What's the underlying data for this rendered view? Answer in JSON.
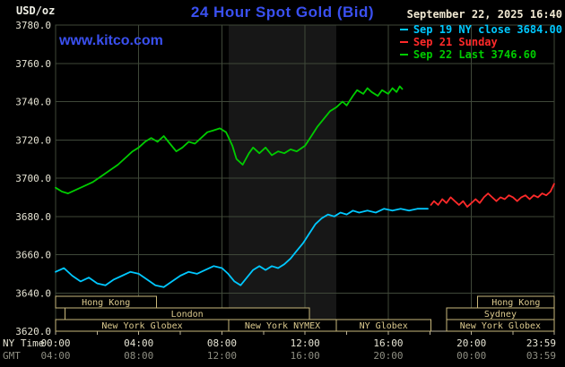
{
  "header": {
    "unit_label": "USD/oz",
    "title": "24 Hour Spot Gold (Bid)",
    "datetime": "September 22, 2025 16:40",
    "watermark": "www.kitco.com"
  },
  "axes": {
    "x_primary_name": "NY Time",
    "x_secondary_name": "GMT",
    "x_primary_labels": [
      "00:00",
      "04:00",
      "08:00",
      "12:00",
      "16:00",
      "20:00",
      "23:59"
    ],
    "x_secondary_labels": [
      "04:00",
      "08:00",
      "12:00",
      "16:00",
      "20:00",
      "00:00",
      "03:59"
    ],
    "x_label_hours": [
      0,
      4,
      8,
      12,
      16,
      20,
      23.983
    ],
    "y_tick_labels": [
      "3780.0",
      "3760.0",
      "3740.0",
      "3720.0",
      "3700.0",
      "3680.0",
      "3660.0",
      "3640.0",
      "3620.0"
    ]
  },
  "colors": {
    "background": "#000000",
    "plot_band": "#171717",
    "grid": "#3f4839",
    "axis_text": "#e6e4d4",
    "gmt_text": "#8e8e82",
    "axis_line": "#b9b199",
    "session_border": "#c9b87b",
    "session_text": "#dcca8e",
    "title": "#3a50f0",
    "datetime": "#f0e8d2",
    "unit": "#f0f0e6"
  },
  "chart_data": {
    "type": "line",
    "title": "24 Hour Spot Gold (Bid)",
    "ylabel": "USD/oz",
    "xlabel": "NY Time / GMT",
    "grid": true,
    "legend_position": "top-right",
    "xlim_hours": [
      0,
      23.983
    ],
    "ylim": [
      3620,
      3780
    ],
    "ytick_step": 20,
    "highlight_band_hours": [
      8.33,
      13.5
    ],
    "series": [
      {
        "name": "Sep 19 NY close 3684.00",
        "color": "#00c8ff",
        "points": [
          [
            0,
            3651
          ],
          [
            0.4,
            3653
          ],
          [
            0.8,
            3649
          ],
          [
            1.2,
            3646
          ],
          [
            1.6,
            3648
          ],
          [
            2,
            3645
          ],
          [
            2.4,
            3644
          ],
          [
            2.8,
            3647
          ],
          [
            3.2,
            3649
          ],
          [
            3.6,
            3651
          ],
          [
            4,
            3650
          ],
          [
            4.4,
            3647
          ],
          [
            4.8,
            3644
          ],
          [
            5.2,
            3643
          ],
          [
            5.6,
            3646
          ],
          [
            6,
            3649
          ],
          [
            6.4,
            3651
          ],
          [
            6.8,
            3650
          ],
          [
            7.2,
            3652
          ],
          [
            7.6,
            3654
          ],
          [
            8,
            3653
          ],
          [
            8.3,
            3650
          ],
          [
            8.6,
            3646
          ],
          [
            8.9,
            3644
          ],
          [
            9.2,
            3648
          ],
          [
            9.5,
            3652
          ],
          [
            9.8,
            3654
          ],
          [
            10.1,
            3652
          ],
          [
            10.4,
            3654
          ],
          [
            10.7,
            3653
          ],
          [
            11,
            3655
          ],
          [
            11.3,
            3658
          ],
          [
            11.6,
            3662
          ],
          [
            11.9,
            3666
          ],
          [
            12.2,
            3671
          ],
          [
            12.5,
            3676
          ],
          [
            12.8,
            3679
          ],
          [
            13.1,
            3681
          ],
          [
            13.4,
            3680
          ],
          [
            13.7,
            3682
          ],
          [
            14,
            3681
          ],
          [
            14.3,
            3683
          ],
          [
            14.6,
            3682
          ],
          [
            15,
            3683
          ],
          [
            15.4,
            3682
          ],
          [
            15.8,
            3684
          ],
          [
            16.2,
            3683
          ],
          [
            16.6,
            3684
          ],
          [
            17,
            3683
          ],
          [
            17.4,
            3684
          ],
          [
            17.9,
            3684
          ]
        ]
      },
      {
        "name": "Sep 21 Sunday",
        "color": "#ff2a2a",
        "points": [
          [
            18.05,
            3686
          ],
          [
            18.2,
            3688
          ],
          [
            18.4,
            3686
          ],
          [
            18.6,
            3689
          ],
          [
            18.8,
            3687
          ],
          [
            19,
            3690
          ],
          [
            19.2,
            3688
          ],
          [
            19.4,
            3686
          ],
          [
            19.6,
            3688
          ],
          [
            19.8,
            3685
          ],
          [
            20,
            3687
          ],
          [
            20.2,
            3689
          ],
          [
            20.4,
            3687
          ],
          [
            20.6,
            3690
          ],
          [
            20.8,
            3692
          ],
          [
            21,
            3690
          ],
          [
            21.2,
            3688
          ],
          [
            21.4,
            3690
          ],
          [
            21.6,
            3689
          ],
          [
            21.8,
            3691
          ],
          [
            22,
            3690
          ],
          [
            22.2,
            3688
          ],
          [
            22.4,
            3690
          ],
          [
            22.6,
            3691
          ],
          [
            22.8,
            3689
          ],
          [
            23,
            3691
          ],
          [
            23.2,
            3690
          ],
          [
            23.4,
            3692
          ],
          [
            23.6,
            3691
          ],
          [
            23.8,
            3693
          ],
          [
            23.98,
            3697
          ]
        ]
      },
      {
        "name": "Sep 22 Last 3746.60",
        "color": "#00cc00",
        "points": [
          [
            0,
            3695
          ],
          [
            0.3,
            3693
          ],
          [
            0.6,
            3692
          ],
          [
            1,
            3694
          ],
          [
            1.4,
            3696
          ],
          [
            1.8,
            3698
          ],
          [
            2.2,
            3701
          ],
          [
            2.6,
            3704
          ],
          [
            3,
            3707
          ],
          [
            3.4,
            3711
          ],
          [
            3.7,
            3714
          ],
          [
            4,
            3716
          ],
          [
            4.3,
            3719
          ],
          [
            4.6,
            3721
          ],
          [
            4.9,
            3719
          ],
          [
            5.2,
            3722
          ],
          [
            5.5,
            3718
          ],
          [
            5.8,
            3714
          ],
          [
            6.1,
            3716
          ],
          [
            6.4,
            3719
          ],
          [
            6.7,
            3718
          ],
          [
            7,
            3721
          ],
          [
            7.3,
            3724
          ],
          [
            7.6,
            3725
          ],
          [
            7.9,
            3726
          ],
          [
            8.2,
            3724
          ],
          [
            8.5,
            3717
          ],
          [
            8.7,
            3710
          ],
          [
            9,
            3707
          ],
          [
            9.3,
            3713
          ],
          [
            9.5,
            3716
          ],
          [
            9.8,
            3713
          ],
          [
            10.1,
            3716
          ],
          [
            10.4,
            3712
          ],
          [
            10.7,
            3714
          ],
          [
            11,
            3713
          ],
          [
            11.3,
            3715
          ],
          [
            11.6,
            3714
          ],
          [
            12,
            3717
          ],
          [
            12.3,
            3722
          ],
          [
            12.6,
            3727
          ],
          [
            12.9,
            3731
          ],
          [
            13.2,
            3735
          ],
          [
            13.5,
            3737
          ],
          [
            13.8,
            3740
          ],
          [
            14,
            3738
          ],
          [
            14.3,
            3743
          ],
          [
            14.5,
            3746
          ],
          [
            14.8,
            3744
          ],
          [
            15,
            3747
          ],
          [
            15.2,
            3745
          ],
          [
            15.5,
            3743
          ],
          [
            15.7,
            3746
          ],
          [
            16,
            3744
          ],
          [
            16.2,
            3747
          ],
          [
            16.4,
            3745
          ],
          [
            16.55,
            3748
          ],
          [
            16.67,
            3746.6
          ]
        ]
      }
    ],
    "sessions": [
      {
        "row": 0,
        "label": "Hong Kong",
        "start": 0,
        "end": 4.85
      },
      {
        "row": 0,
        "label": "Hong Kong",
        "start": 20.3,
        "end": 23.983
      },
      {
        "row": 1,
        "label": "London",
        "start": 0.45,
        "end": 12.2
      },
      {
        "row": 1,
        "label": "Sydney",
        "start": 18.8,
        "end": 23.983
      },
      {
        "row": 2,
        "label": "New York Globex",
        "start": 0,
        "end": 8.33
      },
      {
        "row": 2,
        "label": "New York NYMEX",
        "start": 8.33,
        "end": 13.5
      },
      {
        "row": 2,
        "label": "NY Globex",
        "start": 13.5,
        "end": 18.05
      },
      {
        "row": 2,
        "label": "New York Globex",
        "start": 18.8,
        "end": 23.983
      }
    ]
  }
}
